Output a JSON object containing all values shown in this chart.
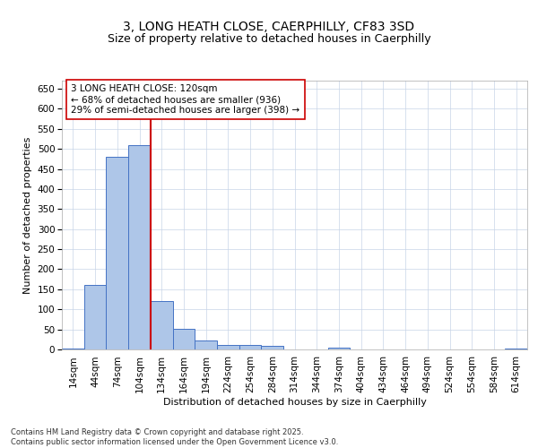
{
  "title_line1": "3, LONG HEATH CLOSE, CAERPHILLY, CF83 3SD",
  "title_line2": "Size of property relative to detached houses in Caerphilly",
  "xlabel": "Distribution of detached houses by size in Caerphilly",
  "ylabel": "Number of detached properties",
  "bin_labels": [
    "14sqm",
    "44sqm",
    "74sqm",
    "104sqm",
    "134sqm",
    "164sqm",
    "194sqm",
    "224sqm",
    "254sqm",
    "284sqm",
    "314sqm",
    "344sqm",
    "374sqm",
    "404sqm",
    "434sqm",
    "464sqm",
    "494sqm",
    "524sqm",
    "554sqm",
    "584sqm",
    "614sqm"
  ],
  "bar_values": [
    3,
    160,
    480,
    510,
    120,
    52,
    22,
    12,
    11,
    8,
    0,
    0,
    5,
    0,
    0,
    0,
    0,
    0,
    0,
    0,
    3
  ],
  "bar_color": "#aec6e8",
  "bar_edge_color": "#4472c4",
  "vline_x": 3.5,
  "vline_color": "#cc0000",
  "annotation_text": "3 LONG HEATH CLOSE: 120sqm\n← 68% of detached houses are smaller (936)\n29% of semi-detached houses are larger (398) →",
  "annotation_box_color": "#ffffff",
  "annotation_box_edge": "#cc0000",
  "ylim": [
    0,
    670
  ],
  "yticks": [
    0,
    50,
    100,
    150,
    200,
    250,
    300,
    350,
    400,
    450,
    500,
    550,
    600,
    650
  ],
  "background_color": "#ffffff",
  "grid_color": "#c8d4e8",
  "footnote": "Contains HM Land Registry data © Crown copyright and database right 2025.\nContains public sector information licensed under the Open Government Licence v3.0.",
  "title_fontsize": 10,
  "subtitle_fontsize": 9,
  "axis_label_fontsize": 8,
  "tick_fontsize": 7.5,
  "annotation_fontsize": 7.5,
  "footnote_fontsize": 6
}
